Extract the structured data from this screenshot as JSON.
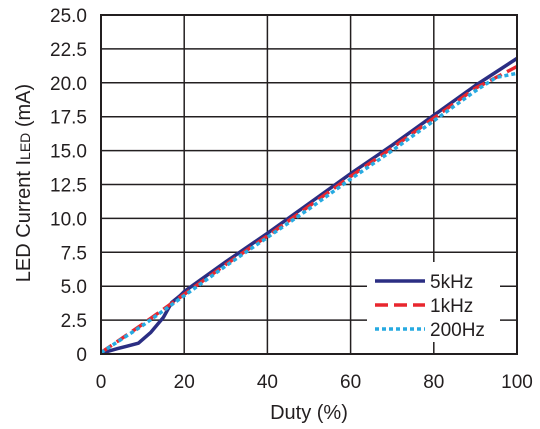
{
  "chart_data": {
    "type": "line",
    "xlabel": "Duty (%)",
    "ylabel_main": "LED Current I",
    "ylabel_sub": "LED",
    "ylabel_unit": " (mA)",
    "xlim": [
      0,
      100
    ],
    "ylim": [
      0,
      25
    ],
    "x_ticks": [
      0,
      20,
      40,
      60,
      80,
      100
    ],
    "x_tick_labels": [
      "0",
      "20",
      "40",
      "60",
      "80",
      "100"
    ],
    "y_ticks": [
      0,
      2.5,
      5,
      7.5,
      10,
      12.5,
      15,
      17.5,
      20,
      22.5,
      25
    ],
    "y_tick_labels": [
      "0",
      "2.5",
      "5.0",
      "7.5",
      "10.0",
      "12.5",
      "15.0",
      "17.5",
      "20.0",
      "22.5",
      "25.0"
    ],
    "grid": true,
    "legend_position": "bottom-right",
    "series": [
      {
        "name": "5kHz",
        "color": "#2b2e83",
        "style": "solid",
        "x": [
          0,
          4,
          9,
          12,
          15,
          17,
          19,
          20,
          30,
          40,
          50,
          60,
          70,
          80,
          90,
          100
        ],
        "y": [
          0.05,
          0.4,
          0.8,
          1.6,
          2.7,
          3.8,
          4.3,
          4.6,
          6.8,
          8.9,
          11.1,
          13.3,
          15.4,
          17.6,
          19.8,
          21.8
        ]
      },
      {
        "name": "1kHz",
        "color": "#e8262e",
        "style": "dashed",
        "x": [
          0,
          10,
          20,
          30,
          40,
          50,
          60,
          70,
          80,
          90,
          100
        ],
        "y": [
          0.1,
          2.2,
          4.4,
          6.6,
          8.7,
          10.9,
          13.1,
          15.2,
          17.4,
          19.6,
          21.2
        ]
      },
      {
        "name": "200Hz",
        "color": "#27aae1",
        "style": "dotted",
        "x": [
          0,
          10,
          20,
          30,
          40,
          50,
          60,
          70,
          80,
          90,
          95,
          100
        ],
        "y": [
          0.1,
          2.1,
          4.3,
          6.5,
          8.6,
          10.7,
          12.9,
          15.0,
          17.2,
          19.4,
          20.4,
          20.7
        ]
      }
    ]
  }
}
